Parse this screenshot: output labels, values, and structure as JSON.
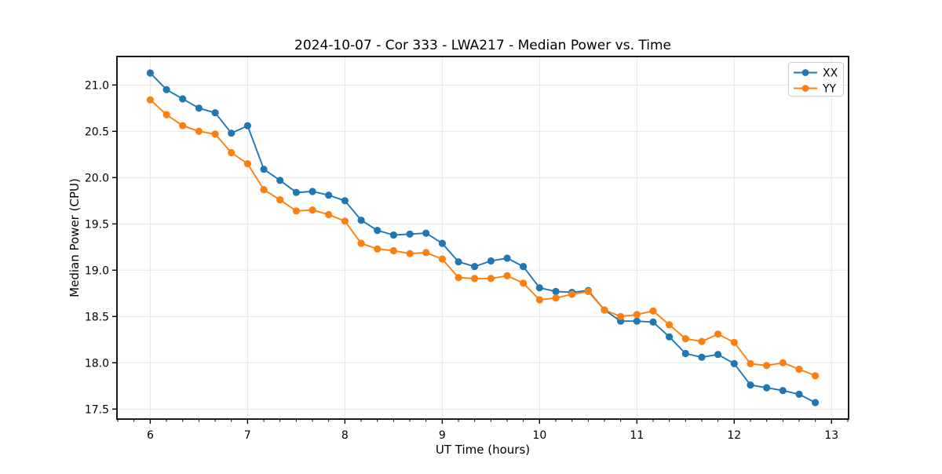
{
  "figure": {
    "background": "#ffffff",
    "grid_color": "#e6e6e6",
    "axis_color": "#000000",
    "text_color": "#000000"
  },
  "chart_data": {
    "type": "line",
    "title": "2024-10-07 - Cor 333 - LWA217 - Median Power vs. Time",
    "xlabel": "UT Time (hours)",
    "ylabel": "Median Power (CPU)",
    "grid": true,
    "legend_position": "upper right",
    "marker": "circle",
    "xlim": [
      5.658,
      13.175
    ],
    "ylim": [
      17.392,
      21.308
    ],
    "xticks": [
      6,
      7,
      8,
      9,
      10,
      11,
      12,
      13
    ],
    "xtick_labels": [
      "6",
      "7",
      "8",
      "9",
      "10",
      "11",
      "12",
      "13"
    ],
    "yticks": [
      17.5,
      18.0,
      18.5,
      19.0,
      19.5,
      20.0,
      20.5,
      21.0
    ],
    "ytick_labels": [
      "17.5",
      "18.0",
      "18.5",
      "19.0",
      "19.5",
      "20.0",
      "20.5",
      "21.0"
    ],
    "x_minor_per_major": 6,
    "x": [
      6.0,
      6.167,
      6.333,
      6.5,
      6.667,
      6.833,
      7.0,
      7.167,
      7.333,
      7.5,
      7.667,
      7.833,
      8.0,
      8.167,
      8.333,
      8.5,
      8.667,
      8.833,
      9.0,
      9.167,
      9.333,
      9.5,
      9.667,
      9.833,
      10.0,
      10.167,
      10.333,
      10.5,
      10.667,
      10.833,
      11.0,
      11.167,
      11.333,
      11.5,
      11.667,
      11.833,
      12.0,
      12.167,
      12.333,
      12.5,
      12.667,
      12.833
    ],
    "series": [
      {
        "name": "XX",
        "color": "#1f77b4",
        "values": [
          21.13,
          20.95,
          20.85,
          20.75,
          20.7,
          20.48,
          20.56,
          20.09,
          19.97,
          19.84,
          19.85,
          19.81,
          19.75,
          19.54,
          19.43,
          19.38,
          19.39,
          19.4,
          19.29,
          19.09,
          19.04,
          19.1,
          19.13,
          19.04,
          18.81,
          18.77,
          18.76,
          18.78,
          18.57,
          18.45,
          18.45,
          18.44,
          18.28,
          18.1,
          18.06,
          18.09,
          17.99,
          17.76,
          17.73,
          17.7,
          17.66,
          17.57
        ]
      },
      {
        "name": "YY",
        "color": "#ff7f0e",
        "values": [
          20.84,
          20.68,
          20.56,
          20.5,
          20.47,
          20.27,
          20.15,
          19.87,
          19.76,
          19.64,
          19.65,
          19.6,
          19.53,
          19.29,
          19.23,
          19.21,
          19.18,
          19.19,
          19.12,
          18.92,
          18.91,
          18.91,
          18.94,
          18.86,
          18.68,
          18.7,
          18.74,
          18.77,
          18.57,
          18.5,
          18.52,
          18.56,
          18.41,
          18.26,
          18.23,
          18.31,
          18.22,
          17.99,
          17.97,
          18.0,
          17.93,
          17.86
        ]
      }
    ]
  }
}
